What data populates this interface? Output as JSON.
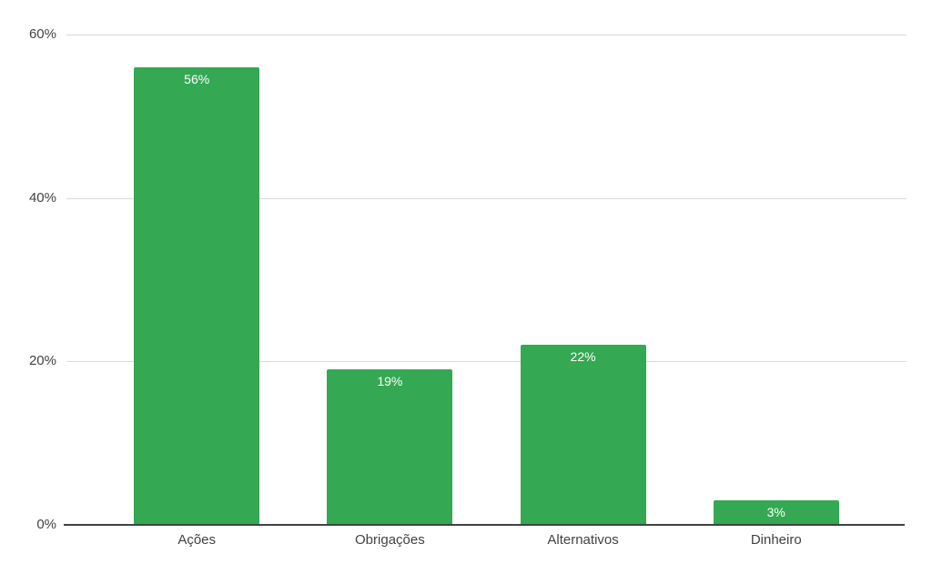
{
  "chart_data": {
    "type": "bar",
    "categories": [
      "Ações",
      "Obrigações",
      "Alternativos",
      "Dinheiro"
    ],
    "values": [
      56,
      19,
      22,
      3
    ],
    "value_labels": [
      "56%",
      "19%",
      "22%",
      "3%"
    ],
    "title": "",
    "xlabel": "",
    "ylabel": "",
    "ylim": [
      0,
      60
    ],
    "yticks": [
      0,
      20,
      40,
      60
    ],
    "ytick_labels": [
      "0%",
      "20%",
      "40%",
      "60%"
    ],
    "grid": true,
    "legend": false,
    "legend_position": "none",
    "bar_color": "#34a853",
    "bar_label_color": "#ffffff",
    "axis_text_color": "#424242",
    "gridline_color": "#dadada",
    "axis_line_color": "#424242",
    "background_color": "#ffffff"
  }
}
